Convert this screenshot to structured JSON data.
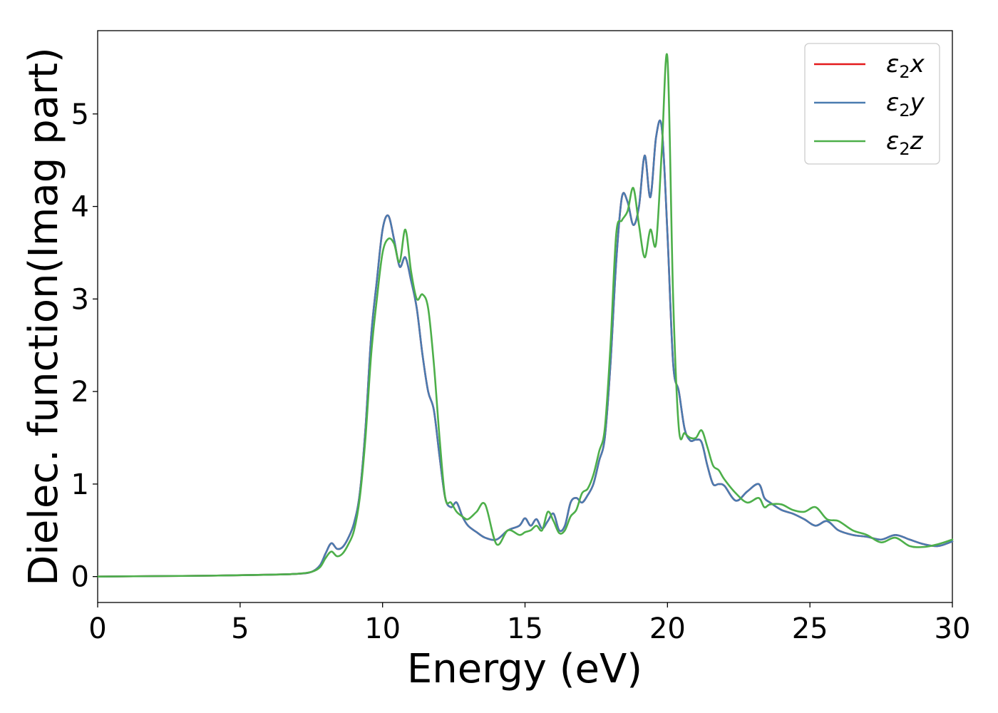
{
  "chart_data": {
    "type": "line",
    "title": "",
    "xlabel": "Energy (eV)",
    "ylabel": "Dielec. function(Imag part)",
    "xlim": [
      0,
      30
    ],
    "ylim": [
      -0.28,
      5.9
    ],
    "xticks": [
      0,
      5,
      10,
      15,
      20,
      25,
      30
    ],
    "xtick_labels": [
      "0",
      "5",
      "10",
      "15",
      "20",
      "25",
      "30"
    ],
    "yticks": [
      0,
      1,
      2,
      3,
      4,
      5
    ],
    "ytick_labels": [
      "0",
      "1",
      "2",
      "3",
      "4",
      "5"
    ],
    "grid": false,
    "legend_position": "top-right",
    "series": [
      {
        "name": "ε2x",
        "legend_main": "ε",
        "legend_sub": "2",
        "legend_tail": "x",
        "color": "#e41a1c",
        "x": [
          0,
          2,
          4,
          6,
          7,
          7.5,
          7.8,
          8,
          8.2,
          8.4,
          8.6,
          8.8,
          9,
          9.2,
          9.4,
          9.6,
          9.8,
          10,
          10.2,
          10.4,
          10.6,
          10.8,
          11,
          11.2,
          11.4,
          11.6,
          11.8,
          12,
          12.2,
          12.4,
          12.6,
          12.8,
          13,
          13.3,
          13.6,
          14,
          14.4,
          14.8,
          15,
          15.2,
          15.4,
          15.6,
          15.8,
          16,
          16.2,
          16.4,
          16.6,
          16.8,
          17,
          17.2,
          17.4,
          17.6,
          17.8,
          18,
          18.2,
          18.4,
          18.6,
          18.8,
          19,
          19.2,
          19.4,
          19.6,
          19.8,
          20,
          20.2,
          20.4,
          20.6,
          20.8,
          21,
          21.2,
          21.4,
          21.6,
          21.8,
          22,
          22.4,
          22.8,
          23.2,
          23.4,
          23.6,
          24,
          24.4,
          24.8,
          25.2,
          25.6,
          26,
          26.5,
          27,
          27.5,
          28,
          28.5,
          29,
          29.5,
          30
        ],
        "values": [
          0,
          0.005,
          0.01,
          0.02,
          0.03,
          0.05,
          0.12,
          0.25,
          0.36,
          0.3,
          0.32,
          0.42,
          0.58,
          0.9,
          1.6,
          2.6,
          3.2,
          3.75,
          3.9,
          3.65,
          3.35,
          3.45,
          3.2,
          2.9,
          2.4,
          2.0,
          1.8,
          1.3,
          0.85,
          0.75,
          0.8,
          0.65,
          0.55,
          0.48,
          0.42,
          0.4,
          0.5,
          0.55,
          0.63,
          0.55,
          0.62,
          0.52,
          0.6,
          0.68,
          0.5,
          0.55,
          0.8,
          0.85,
          0.8,
          0.88,
          1.0,
          1.25,
          1.5,
          2.3,
          3.4,
          4.1,
          4.05,
          3.8,
          4.0,
          4.55,
          4.1,
          4.75,
          4.85,
          3.7,
          2.3,
          2.0,
          1.6,
          1.47,
          1.48,
          1.45,
          1.2,
          1.0,
          1.0,
          0.98,
          0.82,
          0.92,
          1.0,
          0.85,
          0.8,
          0.72,
          0.68,
          0.62,
          0.55,
          0.6,
          0.5,
          0.45,
          0.43,
          0.4,
          0.45,
          0.4,
          0.35,
          0.33,
          0.38
        ]
      },
      {
        "name": "ε2y",
        "legend_main": "ε",
        "legend_sub": "2",
        "legend_tail": "y",
        "color": "#4a7bb0",
        "x": [
          0,
          2,
          4,
          6,
          7,
          7.5,
          7.8,
          8,
          8.2,
          8.4,
          8.6,
          8.8,
          9,
          9.2,
          9.4,
          9.6,
          9.8,
          10,
          10.2,
          10.4,
          10.6,
          10.8,
          11,
          11.2,
          11.4,
          11.6,
          11.8,
          12,
          12.2,
          12.4,
          12.6,
          12.8,
          13,
          13.3,
          13.6,
          14,
          14.4,
          14.8,
          15,
          15.2,
          15.4,
          15.6,
          15.8,
          16,
          16.2,
          16.4,
          16.6,
          16.8,
          17,
          17.2,
          17.4,
          17.6,
          17.8,
          18,
          18.2,
          18.4,
          18.6,
          18.8,
          19,
          19.2,
          19.4,
          19.6,
          19.8,
          20,
          20.2,
          20.4,
          20.6,
          20.8,
          21,
          21.2,
          21.4,
          21.6,
          21.8,
          22,
          22.4,
          22.8,
          23.2,
          23.4,
          23.6,
          24,
          24.4,
          24.8,
          25.2,
          25.6,
          26,
          26.5,
          27,
          27.5,
          28,
          28.5,
          29,
          29.5,
          30
        ],
        "values": [
          0,
          0.005,
          0.01,
          0.02,
          0.03,
          0.05,
          0.12,
          0.25,
          0.36,
          0.3,
          0.32,
          0.42,
          0.58,
          0.9,
          1.6,
          2.6,
          3.2,
          3.75,
          3.9,
          3.65,
          3.35,
          3.45,
          3.2,
          2.9,
          2.4,
          2.0,
          1.8,
          1.3,
          0.85,
          0.75,
          0.8,
          0.65,
          0.55,
          0.48,
          0.42,
          0.4,
          0.5,
          0.55,
          0.63,
          0.55,
          0.62,
          0.52,
          0.6,
          0.68,
          0.5,
          0.55,
          0.8,
          0.85,
          0.8,
          0.88,
          1.0,
          1.25,
          1.5,
          2.3,
          3.4,
          4.1,
          4.05,
          3.8,
          4.0,
          4.55,
          4.1,
          4.75,
          4.85,
          3.7,
          2.3,
          2.0,
          1.6,
          1.47,
          1.48,
          1.45,
          1.2,
          1.0,
          1.0,
          0.98,
          0.82,
          0.92,
          1.0,
          0.85,
          0.8,
          0.72,
          0.68,
          0.62,
          0.55,
          0.6,
          0.5,
          0.45,
          0.43,
          0.4,
          0.45,
          0.4,
          0.35,
          0.33,
          0.38
        ]
      },
      {
        "name": "ε2z",
        "legend_main": "ε",
        "legend_sub": "2",
        "legend_tail": "z",
        "color": "#4daf4a",
        "x": [
          0,
          2,
          4,
          6,
          7,
          7.5,
          7.8,
          8,
          8.2,
          8.4,
          8.6,
          8.8,
          9,
          9.2,
          9.4,
          9.6,
          9.8,
          10,
          10.2,
          10.4,
          10.6,
          10.8,
          11,
          11.2,
          11.4,
          11.6,
          11.8,
          12,
          12.2,
          12.4,
          12.6,
          12.8,
          13,
          13.3,
          13.6,
          14,
          14.4,
          14.8,
          15,
          15.2,
          15.4,
          15.6,
          15.8,
          16,
          16.2,
          16.4,
          16.6,
          16.8,
          17,
          17.2,
          17.4,
          17.6,
          17.8,
          18,
          18.2,
          18.4,
          18.6,
          18.8,
          19,
          19.2,
          19.4,
          19.6,
          19.8,
          20,
          20.2,
          20.4,
          20.6,
          20.8,
          21,
          21.2,
          21.4,
          21.6,
          21.8,
          22,
          22.4,
          22.8,
          23.2,
          23.4,
          23.6,
          24,
          24.4,
          24.8,
          25.2,
          25.6,
          26,
          26.5,
          27,
          27.5,
          28,
          28.5,
          29,
          29.5,
          30
        ],
        "values": [
          0,
          0.005,
          0.01,
          0.02,
          0.03,
          0.05,
          0.1,
          0.2,
          0.27,
          0.22,
          0.25,
          0.35,
          0.5,
          0.85,
          1.5,
          2.4,
          3.0,
          3.5,
          3.65,
          3.6,
          3.4,
          3.75,
          3.3,
          3.0,
          3.05,
          2.9,
          2.3,
          1.5,
          0.85,
          0.8,
          0.7,
          0.65,
          0.62,
          0.7,
          0.78,
          0.35,
          0.5,
          0.45,
          0.48,
          0.5,
          0.55,
          0.5,
          0.7,
          0.6,
          0.47,
          0.5,
          0.65,
          0.72,
          0.9,
          0.95,
          1.1,
          1.35,
          1.6,
          2.5,
          3.7,
          3.85,
          3.95,
          4.2,
          3.8,
          3.45,
          3.75,
          3.6,
          4.6,
          5.6,
          3.0,
          1.6,
          1.55,
          1.5,
          1.5,
          1.58,
          1.4,
          1.2,
          1.15,
          1.05,
          0.9,
          0.8,
          0.85,
          0.75,
          0.78,
          0.78,
          0.72,
          0.7,
          0.75,
          0.62,
          0.6,
          0.5,
          0.45,
          0.37,
          0.42,
          0.33,
          0.32,
          0.35,
          0.4
        ]
      }
    ]
  }
}
